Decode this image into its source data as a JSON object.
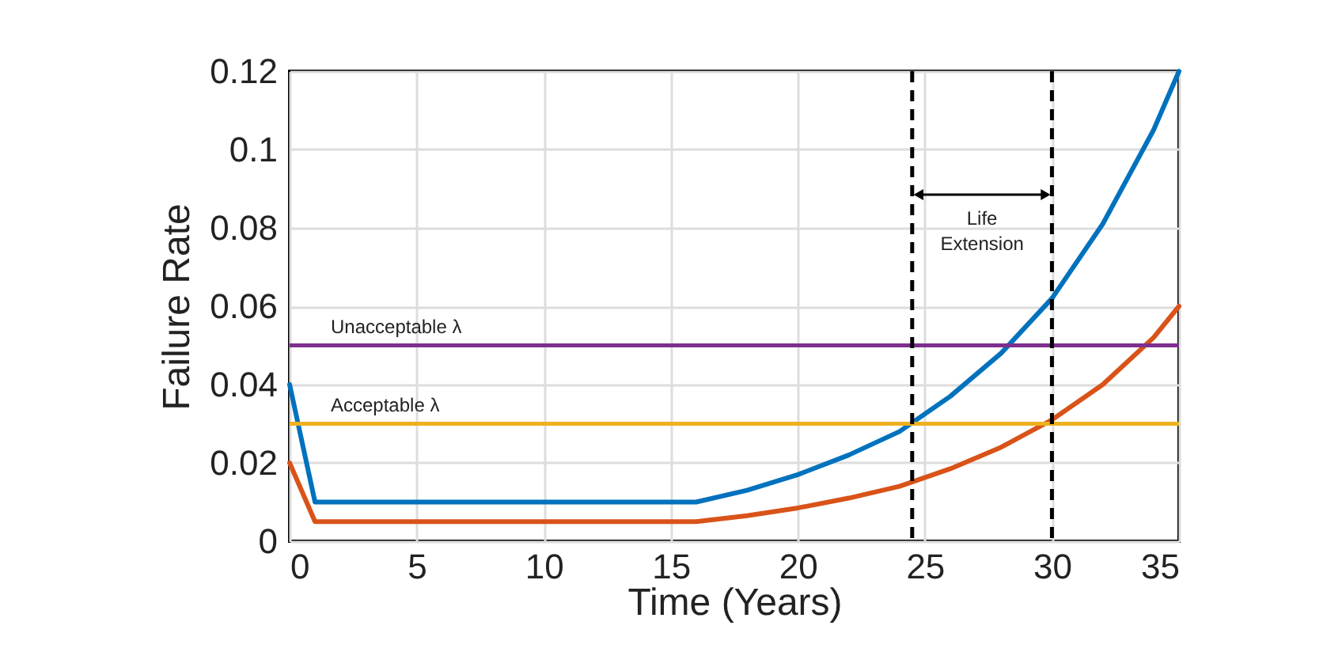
{
  "chart_data": {
    "type": "line",
    "xlabel": "Time (Years)",
    "ylabel": "Failure Rate",
    "series": [
      {
        "color": "#0072bd",
        "x": [
          0,
          1,
          16,
          18,
          20,
          22,
          24,
          26,
          28,
          30,
          32,
          34,
          35
        ],
        "values": [
          0.04,
          0.01,
          0.01,
          0.013,
          0.017,
          0.022,
          0.028,
          0.037,
          0.048,
          0.062,
          0.081,
          0.105,
          0.12
        ]
      },
      {
        "color": "#d95319",
        "x": [
          0,
          1,
          16,
          18,
          20,
          22,
          24,
          26,
          28,
          30,
          32,
          34,
          35
        ],
        "values": [
          0.02,
          0.005,
          0.005,
          0.0065,
          0.0085,
          0.011,
          0.014,
          0.0185,
          0.024,
          0.031,
          0.04,
          0.052,
          0.06
        ]
      }
    ],
    "ref_lines": [
      {
        "axis": "y",
        "value": 0.05,
        "label": "Unacceptable λ",
        "color": "#7e2f8e"
      },
      {
        "axis": "y",
        "value": 0.03,
        "label": "Acceptable λ",
        "color": "#edb120"
      },
      {
        "axis": "x",
        "value": 24.5,
        "label": null,
        "color": "#000000",
        "line_style": "dashed"
      },
      {
        "axis": "x",
        "value": 30,
        "label": null,
        "color": "#000000",
        "line_style": "dashed"
      }
    ],
    "annotations": [
      "Life Extension"
    ],
    "xlim": [
      0,
      35
    ],
    "xticks": [
      0,
      5,
      10,
      15,
      20,
      25,
      30,
      35
    ],
    "ylim": [
      0,
      0.12
    ],
    "yticks": [
      0,
      0.02,
      0.04,
      0.06,
      0.08,
      0.1,
      0.12
    ],
    "grid": true,
    "legend": false,
    "marker": "none",
    "line_style": "solid"
  }
}
